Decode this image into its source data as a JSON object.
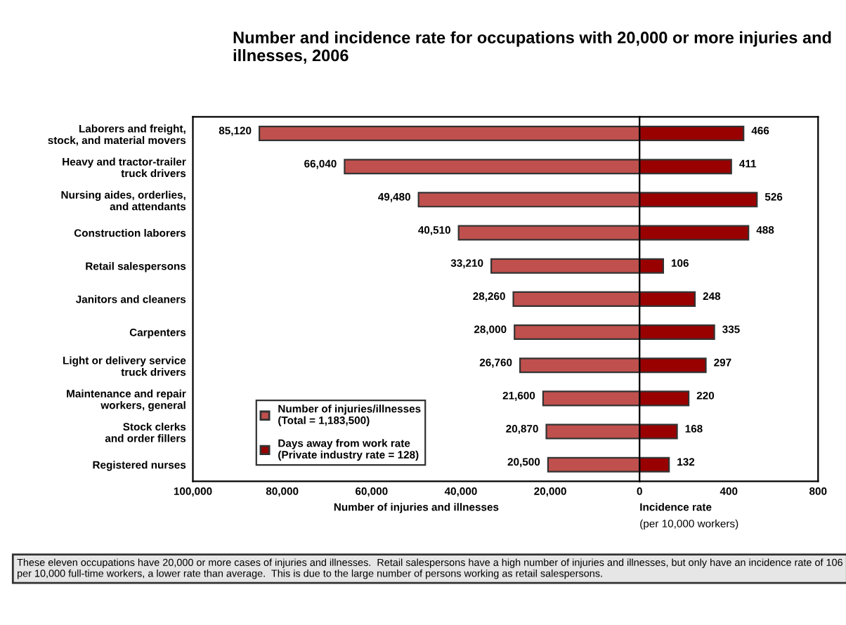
{
  "chart_data": [
    {
      "type": "bar",
      "orientation": "horizontal",
      "title": "Number and incidence rate for occupations with 20,000 or more injuries and illnesses, 2006",
      "categories": [
        "Laborers and freight,\nstock, and material movers",
        "Heavy and tractor-trailer\ntruck drivers",
        "Nursing aides, orderlies,\nand attendants",
        "Construction laborers",
        "Retail salespersons",
        "Janitors and cleaners",
        "Carpenters",
        "Light or delivery service\ntruck drivers",
        "Maintenance and repair\nworkers, general",
        "Stock clerks\nand order fillers",
        "Registered nurses"
      ],
      "series": [
        {
          "name": "Number of injuries/illnesses\n(Total = 1,183,500)",
          "color": "#c0504d",
          "values": [
            85120,
            66040,
            49480,
            40510,
            33210,
            28260,
            28000,
            26760,
            21600,
            20870,
            20500
          ]
        }
      ],
      "xlim": [
        100000,
        0
      ],
      "xticks": [
        {
          "value": 100000,
          "label": "100,000"
        },
        {
          "value": 80000,
          "label": "80,000"
        },
        {
          "value": 60000,
          "label": "60,000"
        },
        {
          "value": 40000,
          "label": "40,000"
        },
        {
          "value": 20000,
          "label": "20,000"
        },
        {
          "value": 0,
          "label": null
        }
      ],
      "xlabel": "Number of injuries and illnesses",
      "value_labels": [
        "85,120",
        "66,040",
        "49,480",
        "40,510",
        "33,210",
        "28,260",
        "28,000",
        "26,760",
        "21,600",
        "20,870",
        "20,500"
      ],
      "grid": false,
      "legend": "bottom left",
      "annotations": [
        "These eleven occupations have 20,000 or more cases of injuries and illnesses.  Retail salespersons have a high number of injuries and illnesses, but only have an incidence rate of 106 per 10,000 full-time workers, a lower rate than average.  This is due to the large number of persons working as retail salespersons."
      ]
    },
    {
      "type": "bar",
      "orientation": "horizontal",
      "series": [
        {
          "name": "Days away from work rate\n(Private industry rate = 128)",
          "color": "#990000",
          "values": [
            466,
            411,
            526,
            488,
            106,
            248,
            335,
            297,
            220,
            168,
            132
          ]
        }
      ],
      "xlim": [
        0,
        800
      ],
      "xticks": [
        0,
        400,
        800
      ],
      "xlabel": "Incidence rate",
      "subtitle": "(per 10,000 workers)",
      "data_labels": true,
      "grid": false
    }
  ]
}
